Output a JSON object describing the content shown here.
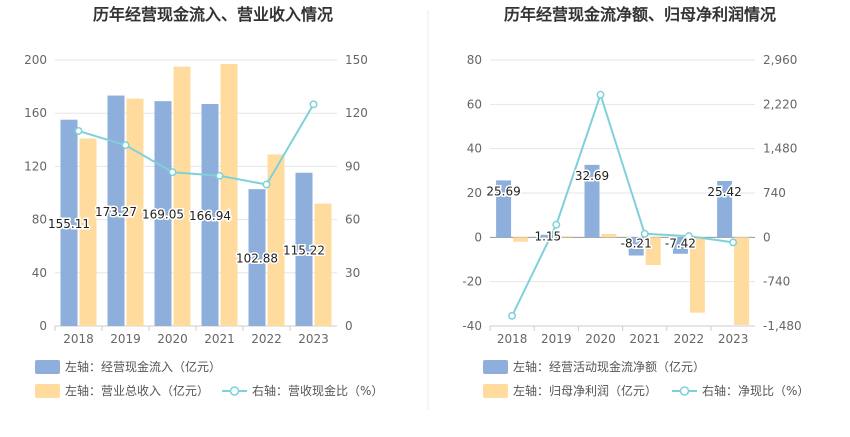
{
  "chart_data": [
    {
      "type": "bar",
      "title": "历年经营现金流入、营业收入情况",
      "categories": [
        "2018",
        "2019",
        "2020",
        "2021",
        "2022",
        "2023"
      ],
      "left_axis": {
        "min": 0,
        "max": 200,
        "step": 40,
        "ticks": [
          "0",
          "40",
          "80",
          "120",
          "160",
          "200"
        ]
      },
      "right_axis": {
        "min": 0,
        "max": 150,
        "step": 30,
        "ticks": [
          "0",
          "30",
          "60",
          "90",
          "120",
          "150"
        ]
      },
      "series": [
        {
          "name": "左轴：经营现金流入（亿元）",
          "type": "bar",
          "axis": "left",
          "color": "#8eaedb",
          "values": [
            155.11,
            173.27,
            169.05,
            166.94,
            102.88,
            115.22
          ],
          "labels": [
            "155.11",
            "173.27",
            "169.05",
            "166.94",
            "102.88",
            "115.22"
          ]
        },
        {
          "name": "左轴：营业总收入（亿元）",
          "type": "bar",
          "axis": "left",
          "color": "#ffdc9e",
          "values": [
            141,
            171,
            195,
            197,
            129,
            92
          ]
        },
        {
          "name": "右轴：营收现金比（%）",
          "type": "line",
          "axis": "right",
          "color": "#7fd1d8",
          "values": [
            110,
            102,
            86.7,
            84.7,
            79.8,
            125
          ]
        }
      ]
    },
    {
      "type": "bar",
      "title": "历年经营现金流净额、归母净利润情况",
      "categories": [
        "2018",
        "2019",
        "2020",
        "2021",
        "2022",
        "2023"
      ],
      "left_axis": {
        "min": -40,
        "max": 80,
        "step": 20,
        "ticks": [
          "-40",
          "-20",
          "0",
          "20",
          "40",
          "60",
          "80"
        ]
      },
      "right_axis": {
        "min": -1480,
        "max": 2960,
        "step": 740,
        "ticks": [
          "-1,480",
          "-740",
          "0",
          "740",
          "1,480",
          "2,220",
          "2,960"
        ]
      },
      "series": [
        {
          "name": "左轴：经营活动现金流净额（亿元）",
          "type": "bar",
          "axis": "left",
          "color": "#8eaedb",
          "values": [
            25.69,
            1.15,
            32.69,
            -8.21,
            -7.42,
            25.42
          ],
          "labels": [
            "25.69",
            "1.15",
            "32.69",
            "-8.21",
            "-7.42",
            "25.42"
          ]
        },
        {
          "name": "左轴：归母净利润（亿元）",
          "type": "bar",
          "axis": "left",
          "color": "#ffdc9e",
          "values": [
            -2,
            0.5,
            1.5,
            -12.5,
            -34,
            -39.5
          ]
        },
        {
          "name": "右轴：净现比（%）",
          "type": "line",
          "axis": "right",
          "color": "#7fd1d8",
          "values": [
            -1310,
            210,
            2380,
            60,
            20,
            -85
          ]
        }
      ]
    }
  ]
}
